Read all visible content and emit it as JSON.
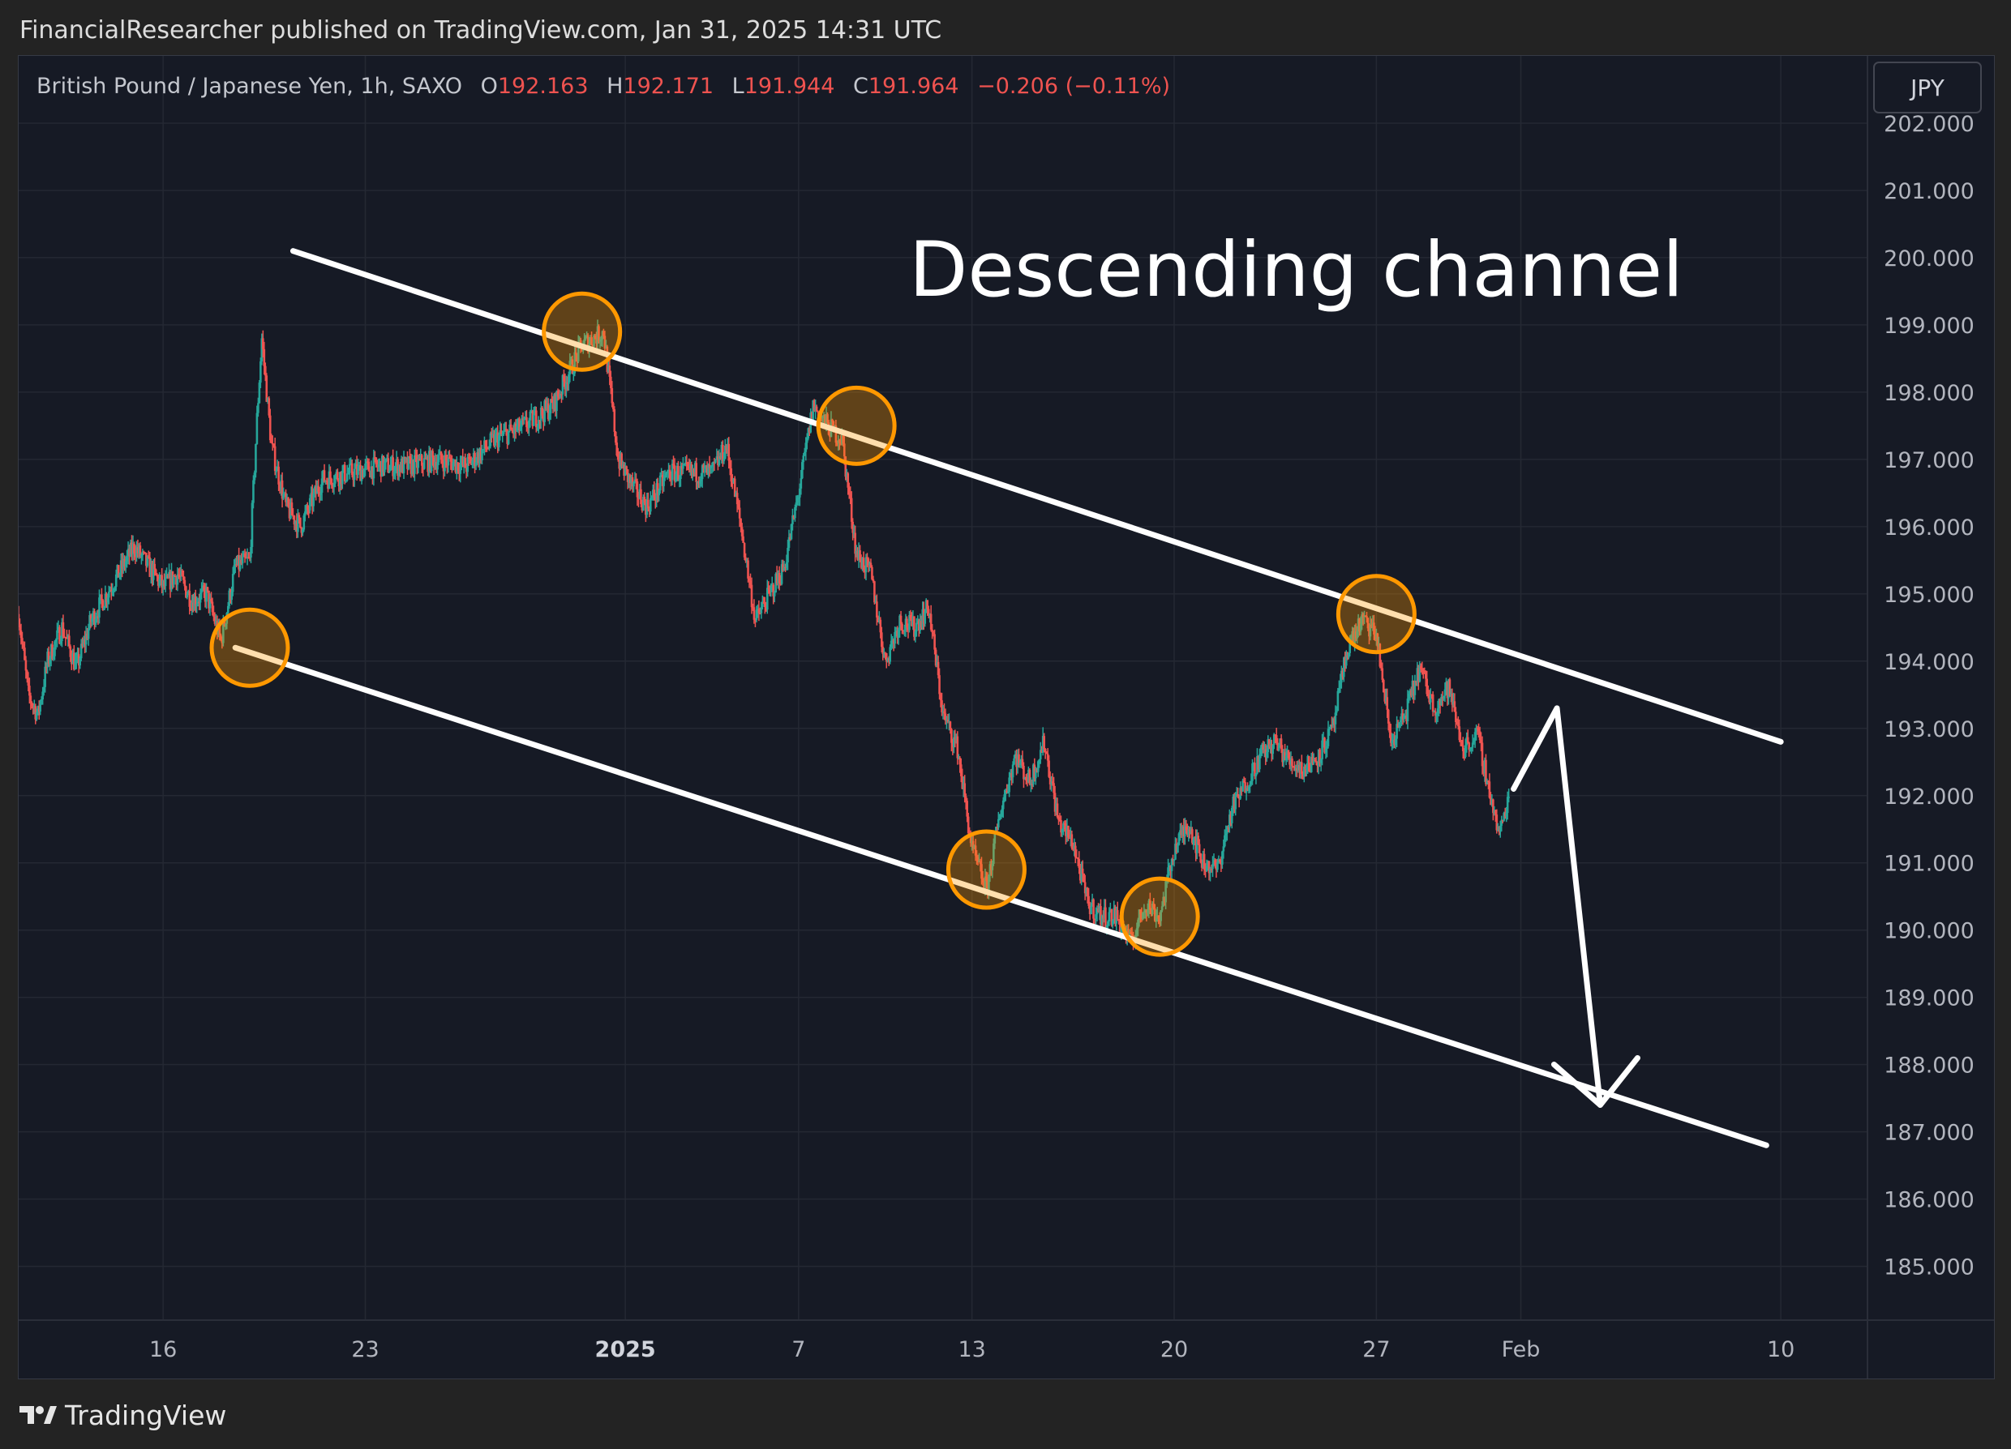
{
  "header": {
    "published_line": "FinancialResearcher published on TradingView.com, Jan 31, 2025 14:31 UTC"
  },
  "footer": {
    "brand": "TradingView",
    "logo_icon": "tradingview-logo-icon"
  },
  "legend": {
    "symbol": "British Pound / Japanese Yen, 1h, SAXO",
    "o_label": "O",
    "o_value": "192.163",
    "h_label": "H",
    "h_value": "192.171",
    "l_label": "L",
    "l_value": "191.944",
    "c_label": "C",
    "c_value": "191.964",
    "change": "−0.206 (−0.11%)"
  },
  "currency_button": "JPY",
  "colors": {
    "background": "#161a25",
    "up": "#26a69a",
    "down": "#ef5350",
    "grid": "#242833",
    "text": "#b2b5be",
    "annotation": "#ffffff",
    "marker": "#ff9800"
  },
  "chart_data": {
    "type": "line",
    "title": "Descending channel",
    "instrument": "British Pound / Japanese Yen",
    "interval": "1h",
    "source": "SAXO",
    "y_axis": {
      "side": "right",
      "ylim": [
        184.2,
        203.0
      ],
      "ticks": [
        202,
        201,
        200,
        199,
        198,
        197,
        196,
        195,
        194,
        193,
        192,
        191,
        190,
        189,
        188,
        187,
        186,
        185
      ],
      "tick_labels": [
        "202.000",
        "201.000",
        "200.000",
        "199.000",
        "198.000",
        "197.000",
        "196.000",
        "195.000",
        "194.000",
        "193.000",
        "192.000",
        "191.000",
        "190.000",
        "189.000",
        "188.000",
        "187.000",
        "186.000",
        "185.000"
      ]
    },
    "x_axis": {
      "xlim": [
        "2024-12-11",
        "2025-02-13"
      ],
      "ticks": [
        {
          "date": "2024-12-16",
          "label": "16",
          "bold": false
        },
        {
          "date": "2024-12-23",
          "label": "23",
          "bold": false
        },
        {
          "date": "2025-01-01",
          "label": "2025",
          "bold": true
        },
        {
          "date": "2025-01-07",
          "label": "7",
          "bold": false
        },
        {
          "date": "2025-01-13",
          "label": "13",
          "bold": false
        },
        {
          "date": "2025-01-20",
          "label": "20",
          "bold": false
        },
        {
          "date": "2025-01-27",
          "label": "27",
          "bold": false
        },
        {
          "date": "2025-02-01",
          "label": "Feb",
          "bold": false
        },
        {
          "date": "2025-02-10",
          "label": "10",
          "bold": false
        }
      ]
    },
    "grid": true,
    "series": [
      {
        "name": "GBP/JPY",
        "type": "price",
        "points": [
          [
            "2024-12-11 00:00",
            194.7
          ],
          [
            "2024-12-11 08:00",
            193.5
          ],
          [
            "2024-12-11 16:00",
            193.2
          ],
          [
            "2024-12-12 00:00",
            194.0
          ],
          [
            "2024-12-12 12:00",
            194.5
          ],
          [
            "2024-12-13 00:00",
            193.9
          ],
          [
            "2024-12-13 12:00",
            194.6
          ],
          [
            "2024-12-15 00:00",
            195.7
          ],
          [
            "2024-12-15 12:00",
            195.4
          ],
          [
            "2024-12-16 00:00",
            195.1
          ],
          [
            "2024-12-16 12:00",
            195.3
          ],
          [
            "2024-12-17 00:00",
            194.9
          ],
          [
            "2024-12-17 12:00",
            195.0
          ],
          [
            "2024-12-18 00:00",
            194.3
          ],
          [
            "2024-12-18 12:00",
            195.4
          ],
          [
            "2024-12-19 00:00",
            195.5
          ],
          [
            "2024-12-19 06:00",
            197.6
          ],
          [
            "2024-12-19 10:00",
            198.8
          ],
          [
            "2024-12-19 18:00",
            197.2
          ],
          [
            "2024-12-20 06:00",
            196.3
          ],
          [
            "2024-12-20 18:00",
            196.0
          ],
          [
            "2024-12-21 12:00",
            196.7
          ],
          [
            "2024-12-22 12:00",
            196.8
          ],
          [
            "2024-12-23 12:00",
            196.9
          ],
          [
            "2024-12-24 12:00",
            196.9
          ],
          [
            "2024-12-25 12:00",
            197.0
          ],
          [
            "2024-12-26 12:00",
            196.9
          ],
          [
            "2024-12-27 12:00",
            197.3
          ],
          [
            "2024-12-28 12:00",
            197.5
          ],
          [
            "2024-12-29 12:00",
            197.8
          ],
          [
            "2024-12-30 12:00",
            198.7
          ],
          [
            "2024-12-31 06:00",
            198.9
          ],
          [
            "2024-12-31 18:00",
            197.0
          ],
          [
            "2025-01-01 06:00",
            196.6
          ],
          [
            "2025-01-01 18:00",
            196.3
          ],
          [
            "2025-01-02 12:00",
            196.8
          ],
          [
            "2025-01-03 12:00",
            196.8
          ],
          [
            "2025-01-04 00:00",
            196.8
          ],
          [
            "2025-01-04 12:00",
            197.2
          ],
          [
            "2025-01-05 00:00",
            196.0
          ],
          [
            "2025-01-05 12:00",
            194.6
          ],
          [
            "2025-01-06 00:00",
            195.0
          ],
          [
            "2025-01-06 12:00",
            195.4
          ],
          [
            "2025-01-07 00:00",
            196.5
          ],
          [
            "2025-01-07 12:00",
            197.8
          ],
          [
            "2025-01-08 00:00",
            197.5
          ],
          [
            "2025-01-08 12:00",
            197.3
          ],
          [
            "2025-01-09 00:00",
            195.6
          ],
          [
            "2025-01-09 12:00",
            195.3
          ],
          [
            "2025-01-10 00:00",
            194.0
          ],
          [
            "2025-01-10 12:00",
            194.6
          ],
          [
            "2025-01-11 00:00",
            194.5
          ],
          [
            "2025-01-11 12:00",
            194.8
          ],
          [
            "2025-01-12 00:00",
            193.2
          ],
          [
            "2025-01-12 12:00",
            192.7
          ],
          [
            "2025-01-13 00:00",
            191.2
          ],
          [
            "2025-01-13 12:00",
            190.6
          ],
          [
            "2025-01-14 00:00",
            191.8
          ],
          [
            "2025-01-14 12:00",
            192.6
          ],
          [
            "2025-01-15 00:00",
            192.2
          ],
          [
            "2025-01-15 12:00",
            192.8
          ],
          [
            "2025-01-16 00:00",
            191.6
          ],
          [
            "2025-01-16 12:00",
            191.3
          ],
          [
            "2025-01-17 00:00",
            190.4
          ],
          [
            "2025-01-17 12:00",
            190.2
          ],
          [
            "2025-01-18 00:00",
            190.2
          ],
          [
            "2025-01-18 12:00",
            189.8
          ],
          [
            "2025-01-19 00:00",
            190.4
          ],
          [
            "2025-01-19 12:00",
            190.2
          ],
          [
            "2025-01-20 00:00",
            191.2
          ],
          [
            "2025-01-20 12:00",
            191.6
          ],
          [
            "2025-01-21 00:00",
            191.0
          ],
          [
            "2025-01-21 12:00",
            190.9
          ],
          [
            "2025-01-22 00:00",
            191.8
          ],
          [
            "2025-01-22 12:00",
            192.2
          ],
          [
            "2025-01-23 00:00",
            192.6
          ],
          [
            "2025-01-23 12:00",
            192.8
          ],
          [
            "2025-01-24 00:00",
            192.5
          ],
          [
            "2025-01-24 12:00",
            192.4
          ],
          [
            "2025-01-25 00:00",
            192.6
          ],
          [
            "2025-01-25 12:00",
            193.0
          ],
          [
            "2025-01-26 00:00",
            194.2
          ],
          [
            "2025-01-26 12:00",
            194.6
          ],
          [
            "2025-01-27 00:00",
            194.4
          ],
          [
            "2025-01-27 12:00",
            192.8
          ],
          [
            "2025-01-28 00:00",
            193.2
          ],
          [
            "2025-01-28 12:00",
            193.9
          ],
          [
            "2025-01-29 00:00",
            193.3
          ],
          [
            "2025-01-29 12:00",
            193.6
          ],
          [
            "2025-01-30 00:00",
            192.7
          ],
          [
            "2025-01-30 12:00",
            192.9
          ],
          [
            "2025-01-31 00:00",
            191.9
          ],
          [
            "2025-01-31 06:00",
            191.4
          ],
          [
            "2025-01-31 14:00",
            192.0
          ]
        ]
      }
    ],
    "annotations": {
      "title_text": "Descending channel",
      "upper_line": [
        [
          "2024-12-20 12:00",
          200.1
        ],
        [
          "2025-02-10 00:00",
          192.8
        ]
      ],
      "lower_line": [
        [
          "2024-12-18 12:00",
          194.2
        ],
        [
          "2025-02-09 12:00",
          186.8
        ]
      ],
      "touch_points": [
        [
          "2024-12-19 00:00",
          194.2
        ],
        [
          "2024-12-30 12:00",
          198.9
        ],
        [
          "2025-01-09 00:00",
          197.5
        ],
        [
          "2025-01-13 12:00",
          190.9
        ],
        [
          "2025-01-19 12:00",
          190.2
        ],
        [
          "2025-01-27 00:00",
          194.7
        ]
      ],
      "projection_arrow": [
        [
          "2025-01-31 18:00",
          192.1
        ],
        [
          "2025-02-02 06:00",
          193.3
        ],
        [
          "2025-02-03 18:00",
          187.4
        ]
      ]
    }
  }
}
